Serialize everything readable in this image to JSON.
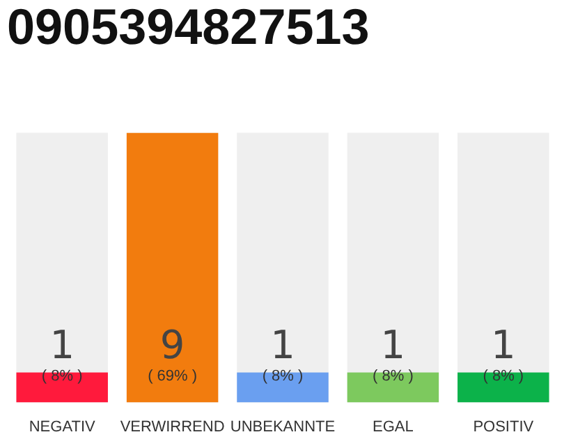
{
  "chart_data": {
    "type": "bar",
    "title": "0905394827513",
    "categories": [
      "NEGATIV",
      "VERWIRREND",
      "UNBEKANNTE",
      "EGAL",
      "POSITIV"
    ],
    "values": [
      1,
      9,
      1,
      1,
      1
    ],
    "colors": [
      "#ff1a3c",
      "#f27c0e",
      "#6a9ff0",
      "#7dc95e",
      "#0cb24a"
    ],
    "annotations": [
      "( 8% )",
      "( 69% )",
      "( 8% )",
      "( 8% )",
      "( 8% )"
    ],
    "data_labels": true,
    "grid": false,
    "legend": false
  }
}
